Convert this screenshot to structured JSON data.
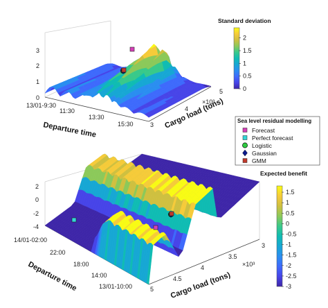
{
  "chart_data": [
    {
      "type": "surface",
      "colorbar_title": "Standard deviation",
      "colorbar_ticks": [
        "2",
        "1.5",
        "1",
        "0.5",
        "0"
      ],
      "clim": [
        0,
        2.4
      ],
      "z_ticks": [
        "0",
        "1",
        "2",
        "3"
      ],
      "zlim": [
        0,
        3
      ],
      "departure_ticks": [
        "13/01-9:30",
        "11:30",
        "13:30",
        "15:30"
      ],
      "cargo_ticks": [
        "3",
        "4",
        "5"
      ],
      "cargo_exponent": "×10³",
      "xlabel": "Departure time",
      "ylabel": "Cargo load (tons)",
      "markers": [
        {
          "series": "Forecast",
          "departure": "12:30",
          "cargo": 4.6,
          "z": 2.7
        },
        {
          "series": "Perfect forecast",
          "departure": "12:35",
          "cargo": 4.3,
          "z": 1.6
        },
        {
          "series": "Logistic",
          "departure": "12:35",
          "cargo": 4.3,
          "z": 1.6
        },
        {
          "series": "Gaussian",
          "departure": "12:35",
          "cargo": 4.3,
          "z": 1.6
        },
        {
          "series": "GMM",
          "departure": "12:35",
          "cargo": 4.3,
          "z": 1.6
        }
      ]
    },
    {
      "type": "surface",
      "colorbar_title": "Expected benefit",
      "colorbar_ticks": [
        "1.5",
        "1",
        "0.5",
        "0",
        "-0.5",
        "-1",
        "-1.5",
        "-2",
        "-2.5",
        "-3"
      ],
      "clim": [
        -3,
        1.8
      ],
      "z_ticks": [
        "2",
        "0",
        "-2",
        "-4"
      ],
      "zlim": [
        -4,
        2
      ],
      "departure_ticks": [
        "14/01-02:00",
        "22:00",
        "18:00",
        "14:00",
        "13/01-10:00"
      ],
      "cargo_ticks": [
        "3",
        "3.5",
        "4",
        "4.5",
        "5"
      ],
      "cargo_exponent": "×10³",
      "xlabel": "Departure time",
      "ylabel": "Cargo load (tons)",
      "markers": [
        {
          "series": "Forecast",
          "departure": "14:30",
          "cargo": 4.4,
          "z": -3.0
        },
        {
          "series": "Perfect forecast",
          "departure": "00:30",
          "cargo": 4.9,
          "z": -3.4
        },
        {
          "series": "Logistic",
          "departure": "14:00",
          "cargo": 3.9,
          "z": -2.6
        },
        {
          "series": "Gaussian",
          "departure": "14:00",
          "cargo": 3.9,
          "z": -2.6
        },
        {
          "series": "GMM",
          "departure": "14:00",
          "cargo": 3.9,
          "z": -2.6
        }
      ]
    }
  ],
  "legend": {
    "title": "Sea level residual modelling",
    "items": [
      {
        "label": "Forecast",
        "color": "#d63fb8",
        "shape": "square"
      },
      {
        "label": "Perfect forecast",
        "color": "#33d6d6",
        "shape": "square"
      },
      {
        "label": "Logistic",
        "color": "#2ecc40",
        "shape": "circle"
      },
      {
        "label": "Gaussian",
        "color": "#0a1a8c",
        "shape": "diamond"
      },
      {
        "label": "GMM",
        "color": "#c0392b",
        "shape": "square"
      }
    ]
  },
  "colormap": [
    "#3e26a8",
    "#4744e8",
    "#3e6afc",
    "#2a8ef0",
    "#17a7d4",
    "#10bcb3",
    "#39c98a",
    "#8cc95a",
    "#cfc040",
    "#f6cb3a",
    "#f9fb15"
  ]
}
